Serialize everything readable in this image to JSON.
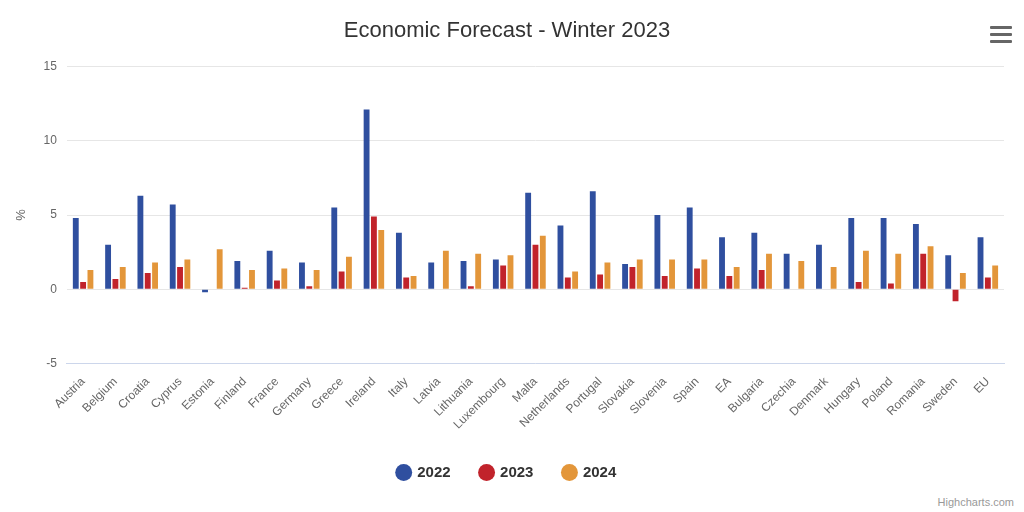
{
  "chart_data": {
    "type": "bar",
    "title": "Economic Forecast - Winter 2023",
    "y_label": "%",
    "credits": "Highcharts.com",
    "categories": [
      "Austria",
      "Belgium",
      "Croatia",
      "Cyprus",
      "Estonia",
      "Finland",
      "France",
      "Germany",
      "Greece",
      "Ireland",
      "Italy",
      "Latvia",
      "Lithuania",
      "Luxembourg",
      "Malta",
      "Netherlands",
      "Portugal",
      "Slovakia",
      "Slovenia",
      "Spain",
      "EA",
      "Bulgaria",
      "Czechia",
      "Denmark",
      "Hungary",
      "Poland",
      "Romania",
      "Sweden",
      "EU"
    ],
    "series": [
      {
        "name": "2022",
        "color": "#2f4f9f",
        "values": [
          4.8,
          3.0,
          6.3,
          5.7,
          -0.2,
          1.9,
          2.6,
          1.8,
          5.5,
          12.1,
          3.8,
          1.8,
          1.9,
          2.0,
          6.5,
          4.3,
          6.6,
          1.7,
          5.0,
          5.5,
          3.5,
          3.8,
          2.4,
          3.0,
          4.8,
          4.8,
          4.4,
          2.3,
          3.5
        ]
      },
      {
        "name": "2023",
        "color": "#c1232b",
        "values": [
          0.5,
          0.7,
          1.1,
          1.5,
          0.0,
          0.1,
          0.6,
          0.2,
          1.2,
          4.9,
          0.8,
          0.0,
          0.2,
          1.6,
          3.0,
          0.8,
          1.0,
          1.5,
          0.9,
          1.4,
          0.9,
          1.3,
          0.0,
          0.0,
          0.5,
          0.4,
          2.4,
          -0.8,
          0.8
        ]
      },
      {
        "name": "2024",
        "color": "#e3963a",
        "values": [
          1.3,
          1.5,
          1.8,
          2.0,
          2.7,
          1.3,
          1.4,
          1.3,
          2.2,
          4.0,
          0.9,
          2.6,
          2.4,
          2.3,
          3.6,
          1.2,
          1.8,
          2.0,
          2.0,
          2.0,
          1.5,
          2.4,
          1.9,
          1.5,
          2.6,
          2.4,
          2.9,
          1.1,
          1.6
        ]
      }
    ],
    "ylim": [
      -5,
      15
    ],
    "yticks": [
      -5,
      0,
      5,
      10,
      15
    ],
    "grid": true,
    "legend": "bottom"
  }
}
